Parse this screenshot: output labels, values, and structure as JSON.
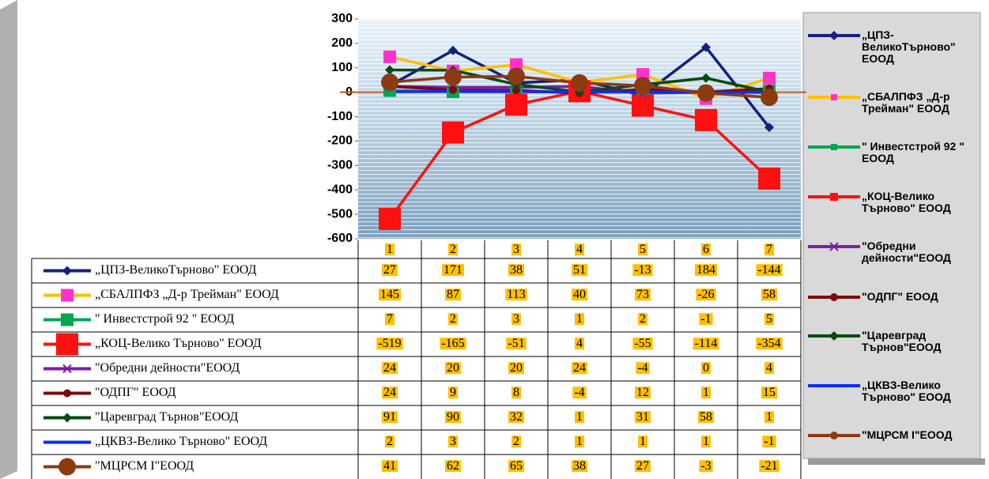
{
  "chart_data": {
    "type": "line",
    "categories": [
      "1",
      "2",
      "3",
      "4",
      "5",
      "6",
      "7"
    ],
    "ylim": [
      -600,
      300
    ],
    "yticks": [
      300,
      200,
      100,
      0,
      -100,
      -200,
      -300,
      -400,
      -500,
      -600
    ],
    "series": [
      {
        "name": "„ЦПЗ-ВеликоТърново\" ЕООД",
        "color": "#16207a",
        "marker": "diamond",
        "values": [
          27,
          171,
          38,
          51,
          -13,
          184,
          -144
        ]
      },
      {
        "name": "„СБАЛПФЗ „Д-р Трейман\" ЕООД",
        "color": "#ffc000",
        "marker": "square",
        "marker_color": "#ff33cc",
        "values": [
          145,
          87,
          113,
          40,
          73,
          -26,
          58
        ]
      },
      {
        "name": "\" Инвестстрой 92 \" ЕООД",
        "color": "#00a651",
        "marker": "square",
        "values": [
          7,
          2,
          3,
          1,
          2,
          -1,
          5
        ]
      },
      {
        "name": "„КОЦ-Велико Търново\" ЕООД",
        "color": "#ff1010",
        "marker": "bigsquare",
        "values": [
          -519,
          -165,
          -51,
          4,
          -55,
          -114,
          -354
        ]
      },
      {
        "name": "\"Обредни дейности\"ЕООД",
        "color": "#7a1fa2",
        "marker": "star",
        "values": [
          24,
          20,
          20,
          24,
          -4,
          0,
          4
        ]
      },
      {
        "name": "\"ОДПГ\" ЕООД",
        "color": "#7b0a0a",
        "marker": "circle",
        "values": [
          24,
          9,
          8,
          -4,
          12,
          1,
          15
        ]
      },
      {
        "name": "\"Царевград Търнов\"ЕООД",
        "color": "#0b4a12",
        "marker": "diamond",
        "values": [
          91,
          90,
          32,
          1,
          31,
          58,
          1
        ]
      },
      {
        "name": "„ЦКВЗ-Велико Търново\" ЕООД",
        "color": "#0a2cff",
        "marker": "none",
        "values": [
          2,
          3,
          2,
          1,
          1,
          1,
          -1
        ]
      },
      {
        "name": "\"МЦРСМ I\"ЕООД",
        "color": "#8b3a12",
        "marker": "bigcircle",
        "values": [
          41,
          62,
          65,
          38,
          27,
          -3,
          -21
        ]
      }
    ]
  }
}
